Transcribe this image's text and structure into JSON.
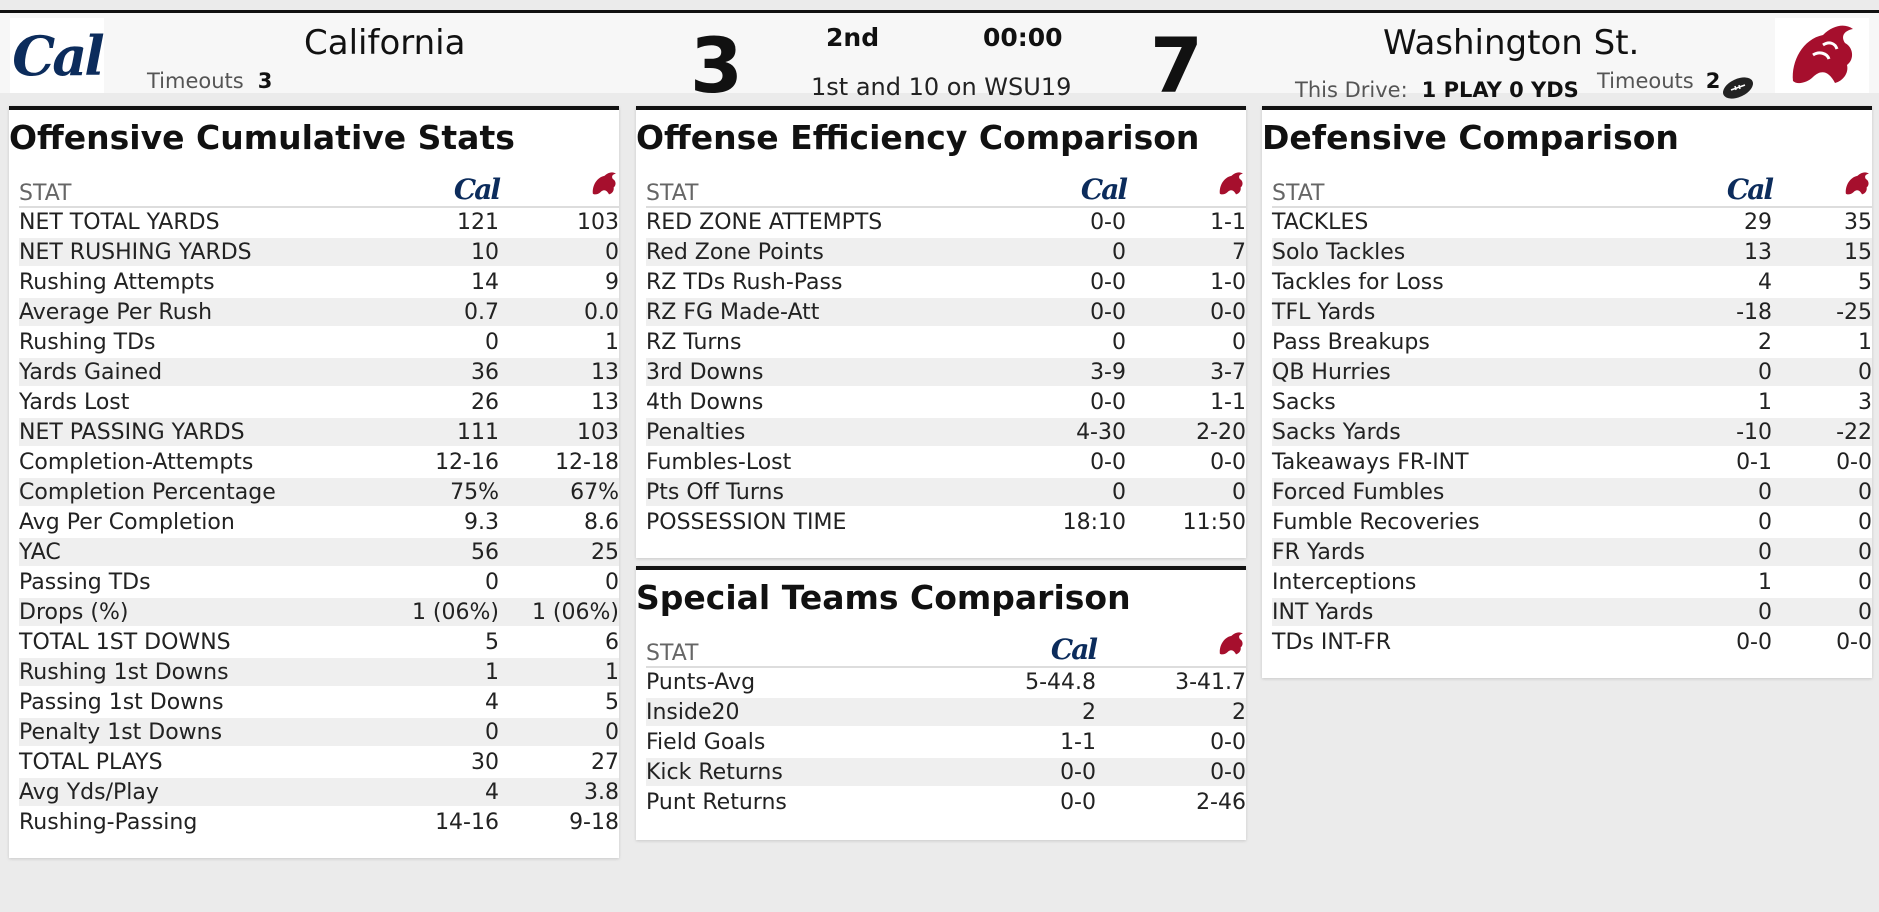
{
  "scoreboard": {
    "home": {
      "name": "California",
      "timeouts_label": "Timeouts",
      "timeouts": "3",
      "score": "3",
      "logo_icon": "cal-logo"
    },
    "away": {
      "name": "Washington St.",
      "timeouts_label": "Timeouts",
      "timeouts": "2",
      "score": "7",
      "logo_icon": "wsu-cougar-logo"
    },
    "period": "2nd",
    "clock": "00:00",
    "down_distance": "1st and 10 on WSU19",
    "drive_label": "This Drive:",
    "drive_value": "1 PLAY 0 YDS",
    "possession_icon": "football-icon"
  },
  "offensive": {
    "title": "Offensive Cumulative Stats",
    "stat_header": "STAT",
    "rows": [
      {
        "stat": "NET TOTAL YARDS",
        "cal": "121",
        "wsu": "103"
      },
      {
        "stat": "NET RUSHING YARDS",
        "cal": "10",
        "wsu": "0"
      },
      {
        "stat": "Rushing Attempts",
        "cal": "14",
        "wsu": "9"
      },
      {
        "stat": "Average Per Rush",
        "cal": "0.7",
        "wsu": "0.0"
      },
      {
        "stat": "Rushing TDs",
        "cal": "0",
        "wsu": "1"
      },
      {
        "stat": "Yards Gained",
        "cal": "36",
        "wsu": "13"
      },
      {
        "stat": "Yards Lost",
        "cal": "26",
        "wsu": "13"
      },
      {
        "stat": "NET PASSING YARDS",
        "cal": "111",
        "wsu": "103"
      },
      {
        "stat": "Completion-Attempts",
        "cal": "12-16",
        "wsu": "12-18"
      },
      {
        "stat": "Completion Percentage",
        "cal": "75%",
        "wsu": "67%"
      },
      {
        "stat": "Avg Per Completion",
        "cal": "9.3",
        "wsu": "8.6"
      },
      {
        "stat": "YAC",
        "cal": "56",
        "wsu": "25"
      },
      {
        "stat": "Passing TDs",
        "cal": "0",
        "wsu": "0"
      },
      {
        "stat": "Drops (%)",
        "cal": "1 (06%)",
        "wsu": "1 (06%)"
      },
      {
        "stat": "TOTAL 1ST DOWNS",
        "cal": "5",
        "wsu": "6"
      },
      {
        "stat": "Rushing 1st Downs",
        "cal": "1",
        "wsu": "1"
      },
      {
        "stat": "Passing 1st Downs",
        "cal": "4",
        "wsu": "5"
      },
      {
        "stat": "Penalty 1st Downs",
        "cal": "0",
        "wsu": "0"
      },
      {
        "stat": "TOTAL PLAYS",
        "cal": "30",
        "wsu": "27"
      },
      {
        "stat": "Avg Yds/Play",
        "cal": "4",
        "wsu": "3.8"
      },
      {
        "stat": "Rushing-Passing",
        "cal": "14-16",
        "wsu": "9-18"
      }
    ]
  },
  "efficiency": {
    "title": "Offense Efficiency Comparison",
    "stat_header": "STAT",
    "rows": [
      {
        "stat": "RED ZONE ATTEMPTS",
        "cal": "0-0",
        "wsu": "1-1"
      },
      {
        "stat": "Red Zone Points",
        "cal": "0",
        "wsu": "7"
      },
      {
        "stat": "RZ TDs Rush-Pass",
        "cal": "0-0",
        "wsu": "1-0"
      },
      {
        "stat": "RZ FG Made-Att",
        "cal": "0-0",
        "wsu": "0-0"
      },
      {
        "stat": "RZ Turns",
        "cal": "0",
        "wsu": "0"
      },
      {
        "stat": "3rd Downs",
        "cal": "3-9",
        "wsu": "3-7"
      },
      {
        "stat": "4th Downs",
        "cal": "0-0",
        "wsu": "1-1"
      },
      {
        "stat": "Penalties",
        "cal": "4-30",
        "wsu": "2-20"
      },
      {
        "stat": "Fumbles-Lost",
        "cal": "0-0",
        "wsu": "0-0"
      },
      {
        "stat": "Pts Off Turns",
        "cal": "0",
        "wsu": "0"
      },
      {
        "stat": "POSSESSION TIME",
        "cal": "18:10",
        "wsu": "11:50"
      }
    ]
  },
  "special_teams": {
    "title": "Special Teams Comparison",
    "stat_header": "STAT",
    "rows": [
      {
        "stat": "Punts-Avg",
        "cal": "5-44.8",
        "wsu": "3-41.7"
      },
      {
        "stat": "Inside20",
        "cal": "2",
        "wsu": "2"
      },
      {
        "stat": "Field Goals",
        "cal": "1-1",
        "wsu": "0-0"
      },
      {
        "stat": "Kick Returns",
        "cal": "0-0",
        "wsu": "0-0"
      },
      {
        "stat": "Punt Returns",
        "cal": "0-0",
        "wsu": "2-46"
      }
    ]
  },
  "defensive": {
    "title": "Defensive Comparison",
    "stat_header": "STAT",
    "rows": [
      {
        "stat": "TACKLES",
        "cal": "29",
        "wsu": "35"
      },
      {
        "stat": "Solo Tackles",
        "cal": "13",
        "wsu": "15"
      },
      {
        "stat": "Tackles for Loss",
        "cal": "4",
        "wsu": "5"
      },
      {
        "stat": "TFL Yards",
        "cal": "-18",
        "wsu": "-25"
      },
      {
        "stat": "Pass Breakups",
        "cal": "2",
        "wsu": "1"
      },
      {
        "stat": "QB Hurries",
        "cal": "0",
        "wsu": "0"
      },
      {
        "stat": "Sacks",
        "cal": "1",
        "wsu": "3"
      },
      {
        "stat": "Sacks Yards",
        "cal": "-10",
        "wsu": "-22"
      },
      {
        "stat": "Takeaways FR-INT",
        "cal": "0-1",
        "wsu": "0-0"
      },
      {
        "stat": "Forced Fumbles",
        "cal": "0",
        "wsu": "0"
      },
      {
        "stat": "Fumble Recoveries",
        "cal": "0",
        "wsu": "0"
      },
      {
        "stat": "FR Yards",
        "cal": "0",
        "wsu": "0"
      },
      {
        "stat": "Interceptions",
        "cal": "1",
        "wsu": "0"
      },
      {
        "stat": "INT Yards",
        "cal": "0",
        "wsu": "0"
      },
      {
        "stat": "TDs INT-FR",
        "cal": "0-0",
        "wsu": "0-0"
      }
    ]
  },
  "logos": {
    "cal_text": "Cal",
    "wsu_glyph": "🐾"
  },
  "colors": {
    "cal_navy": "#0c2c5c",
    "wsu_crimson": "#a60f2d",
    "row_alt": "#efefef"
  }
}
